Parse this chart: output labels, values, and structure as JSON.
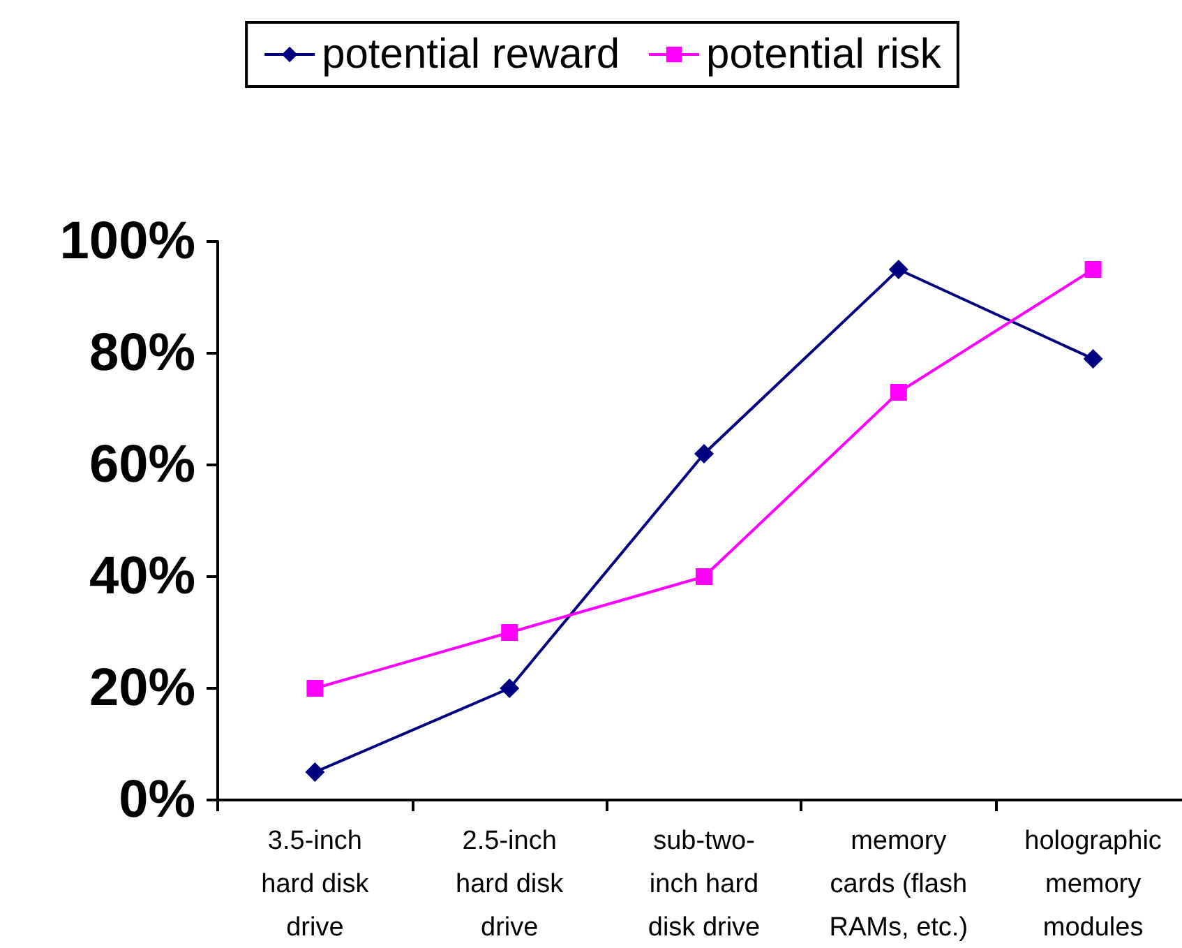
{
  "chart_data": {
    "type": "line",
    "categories": [
      "3.5-inch\nhard disk\ndrive",
      "2.5-inch\nhard disk\ndrive",
      "sub-two-\ninch hard\ndisk drive",
      "memory\ncards (flash\nRAMs, etc.)",
      "holographic\nmemory\nmodules"
    ],
    "series": [
      {
        "name": "potential reward",
        "color": "#000080",
        "marker": "diamond",
        "values": [
          5,
          20,
          62,
          95,
          79
        ]
      },
      {
        "name": "potential risk",
        "color": "#ff00ff",
        "marker": "square",
        "values": [
          20,
          30,
          40,
          73,
          95
        ]
      }
    ],
    "ylim": [
      0,
      100
    ],
    "yticks": [
      {
        "value": 0,
        "label": "0%"
      },
      {
        "value": 20,
        "label": "20%"
      },
      {
        "value": 40,
        "label": "40%"
      },
      {
        "value": 60,
        "label": "60%"
      },
      {
        "value": 80,
        "label": "80%"
      },
      {
        "value": 100,
        "label": "100%"
      }
    ],
    "grid": false,
    "legend": "top",
    "line_style": "solid"
  }
}
